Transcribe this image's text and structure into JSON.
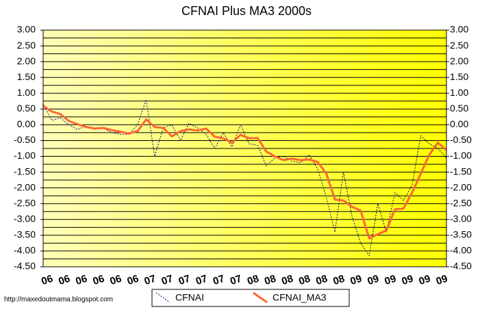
{
  "chart_data": {
    "type": "line",
    "title": "CFNAI Plus MA3 2000s",
    "source": "http://maxedoutmama.blogspot.com",
    "categories": [
      "06",
      null,
      "06",
      null,
      "06",
      null,
      "06",
      null,
      "06",
      null,
      "06",
      null,
      "07",
      null,
      "07",
      null,
      "07",
      null,
      "07",
      null,
      "07",
      null,
      "07",
      null,
      "08",
      null,
      "08",
      null,
      "08",
      null,
      "08",
      null,
      "08",
      null,
      "08",
      null,
      "09",
      null,
      "09",
      null,
      "09",
      null,
      "09",
      null,
      "09",
      null,
      "09",
      null
    ],
    "series": [
      {
        "name": "CFNAI",
        "color": "#000080",
        "style": "dotted",
        "values": [
          0.66,
          0.14,
          0.22,
          0.0,
          -0.15,
          -0.05,
          -0.15,
          -0.1,
          -0.25,
          -0.3,
          -0.3,
          0.0,
          0.8,
          -1.0,
          -0.1,
          0.0,
          -0.5,
          0.05,
          -0.1,
          -0.3,
          -0.75,
          -0.25,
          -0.7,
          0.0,
          -0.6,
          -0.65,
          -1.3,
          -1.05,
          -1.0,
          -1.15,
          -1.2,
          -0.95,
          -1.4,
          -2.3,
          -3.4,
          -1.5,
          -2.9,
          -3.75,
          -4.15,
          -2.5,
          -3.4,
          -2.15,
          -2.4,
          -1.9,
          -0.35,
          -0.6,
          -0.75,
          -1.05
        ]
      },
      {
        "name": "CFNAI_MA3",
        "color": "#ff6633",
        "style": "solid",
        "values": [
          0.6,
          0.42,
          0.34,
          0.12,
          0.02,
          -0.07,
          -0.12,
          -0.1,
          -0.17,
          -0.22,
          -0.28,
          -0.2,
          0.17,
          -0.07,
          -0.1,
          -0.37,
          -0.2,
          -0.15,
          -0.18,
          -0.12,
          -0.38,
          -0.43,
          -0.57,
          -0.32,
          -0.43,
          -0.42,
          -0.85,
          -1.0,
          -1.12,
          -1.07,
          -1.12,
          -1.1,
          -1.18,
          -1.55,
          -2.37,
          -2.4,
          -2.6,
          -2.72,
          -3.6,
          -3.47,
          -3.35,
          -2.68,
          -2.65,
          -2.15,
          -1.55,
          -0.95,
          -0.57,
          -0.8
        ]
      }
    ],
    "ylim": [
      -4.5,
      3
    ],
    "yticks": [
      {
        "value": 3,
        "label": "3.00"
      },
      {
        "value": 2.5,
        "label": "2.50"
      },
      {
        "value": 2,
        "label": "2.00"
      },
      {
        "value": 1.5,
        "label": "1.50"
      },
      {
        "value": 1,
        "label": "1.00"
      },
      {
        "value": 0.5,
        "label": "0.50"
      },
      {
        "value": 0,
        "label": "0.00"
      },
      {
        "value": -0.5,
        "label": "-0.50"
      },
      {
        "value": -1,
        "label": "-1.00"
      },
      {
        "value": -1.5,
        "label": "-1.50"
      },
      {
        "value": -2,
        "label": "-2.00"
      },
      {
        "value": -2.5,
        "label": "-2.50"
      },
      {
        "value": -3,
        "label": "-3.00"
      },
      {
        "value": -3.5,
        "label": "-3.50"
      },
      {
        "value": -4,
        "label": "-4.00"
      },
      {
        "value": -4.5,
        "label": "-4.50"
      }
    ],
    "minor_yticks": [
      2.75,
      2.25,
      1.75,
      1.25,
      0.75,
      0.25,
      -0.25,
      -0.75,
      -1.25,
      -1.75,
      -2.25,
      -2.75,
      -3.25,
      -3.75,
      -4.25
    ],
    "grid": true,
    "right_axis_labels": true,
    "legend": "bottom"
  }
}
